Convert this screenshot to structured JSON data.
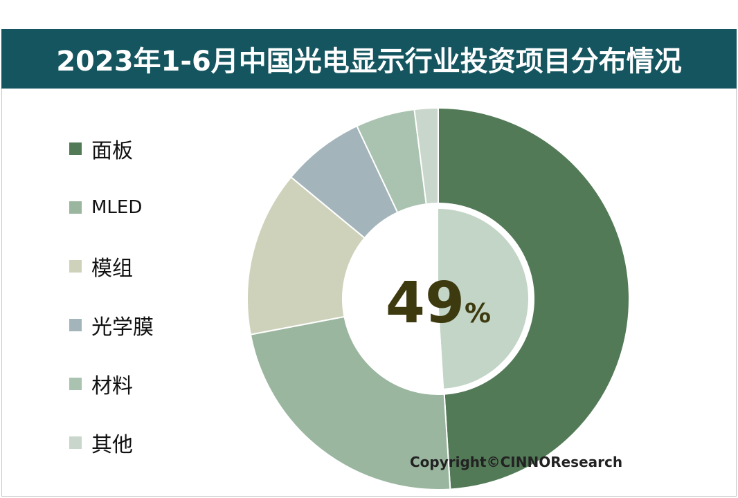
{
  "title": "2023年1-6月中国光电显示行业投资项目分布情况",
  "copyright": "Copyright©CINNOResearch",
  "chart_data": {
    "type": "pie",
    "title": "2023年1-6月中国光电显示行业投资项目分布情况",
    "legend_position": "left",
    "categories": [
      "面板",
      "MLED",
      "模组",
      "光学膜",
      "材料",
      "其他"
    ],
    "values": [
      49,
      23,
      14,
      7,
      5,
      2
    ],
    "colors": [
      "#537a57",
      "#9ab69f",
      "#cfd2bb",
      "#a4b4bb",
      "#aac3b0",
      "#c9d6cb"
    ],
    "center_label": {
      "number": "49",
      "unit": "%"
    },
    "inner_ring": {
      "values": [
        49,
        51
      ],
      "colors": [
        "#c3d5c6",
        "#ffffff"
      ]
    }
  }
}
